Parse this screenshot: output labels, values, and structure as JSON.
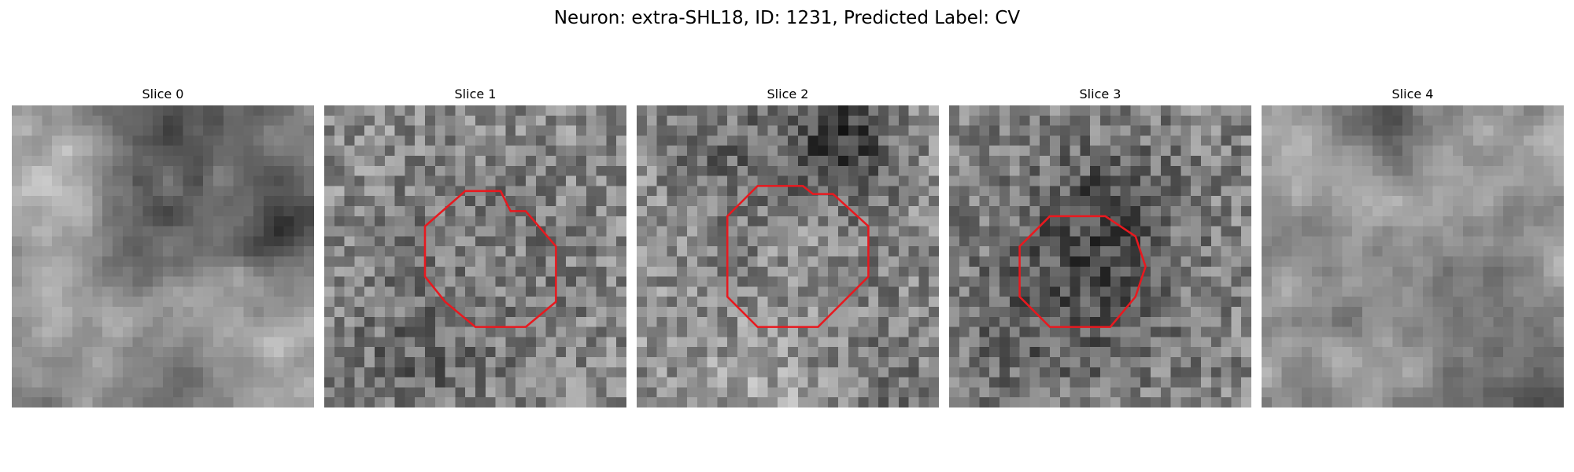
{
  "figure": {
    "title": "Neuron: extra-SHL18, ID: 1231, Predicted Label: CV"
  },
  "image_grid": {
    "pixels_per_side": 30
  },
  "contour_color": "#e8191f",
  "panels": [
    {
      "title": "Slice 0",
      "contour": null
    },
    {
      "title": "Slice 1",
      "contour": [
        [
          14,
          8.5
        ],
        [
          17.5,
          8.5
        ],
        [
          18.5,
          10.5
        ],
        [
          20,
          10.5
        ],
        [
          23,
          14
        ],
        [
          23,
          19.5
        ],
        [
          20,
          22
        ],
        [
          15,
          22
        ],
        [
          12,
          19.5
        ],
        [
          10,
          17
        ],
        [
          10,
          12
        ]
      ]
    },
    {
      "title": "Slice 2",
      "contour": [
        [
          12,
          8
        ],
        [
          16.5,
          8
        ],
        [
          17.5,
          8.8
        ],
        [
          19.5,
          8.8
        ],
        [
          23,
          12
        ],
        [
          23,
          17
        ],
        [
          18,
          22
        ],
        [
          12,
          22
        ],
        [
          9,
          19
        ],
        [
          9,
          11
        ]
      ]
    },
    {
      "title": "Slice 3",
      "contour": [
        [
          10,
          11
        ],
        [
          15.5,
          11
        ],
        [
          18.5,
          13
        ],
        [
          19.5,
          16
        ],
        [
          18.5,
          19
        ],
        [
          16,
          22
        ],
        [
          10,
          22
        ],
        [
          7,
          19
        ],
        [
          7,
          14
        ]
      ]
    },
    {
      "title": "Slice 4",
      "contour": null
    }
  ]
}
